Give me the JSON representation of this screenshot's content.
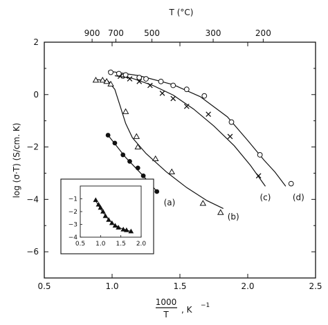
{
  "chart_data": {
    "type": "scatter",
    "title": "",
    "xlabel_numerator": "1000",
    "xlabel_denominator": "T",
    "xlabel_unit": ", K",
    "xlabel_unit_exp": "−1",
    "ylabel": "log (σ·T) (S/cm. K)",
    "top_axis_label": "T (°C)",
    "xlim": [
      0.5,
      2.5
    ],
    "ylim": [
      -7,
      2
    ],
    "xticks": [
      "0.5",
      "1.0",
      "1.5",
      "2.0",
      "2.5"
    ],
    "yticks": [
      "2",
      "0",
      "−2",
      "−4",
      "−6"
    ],
    "top_ticks": [
      "900",
      "700",
      "500",
      "300",
      "200"
    ],
    "top_tick_celsius": [
      900,
      700,
      500,
      300,
      200
    ],
    "series": [
      {
        "name": "(a)",
        "marker": "filled-circle",
        "points": [
          [
            0.97,
            -1.55
          ],
          [
            1.02,
            -1.85
          ],
          [
            1.08,
            -2.3
          ],
          [
            1.13,
            -2.55
          ],
          [
            1.19,
            -2.8
          ],
          [
            1.23,
            -3.1
          ],
          [
            1.33,
            -3.7
          ]
        ],
        "fit": [
          [
            0.97,
            -1.55
          ],
          [
            1.1,
            -2.4
          ],
          [
            1.22,
            -3.05
          ],
          [
            1.34,
            -3.75
          ]
        ]
      },
      {
        "name": "(b)",
        "marker": "open-triangle",
        "points": [
          [
            0.88,
            0.55
          ],
          [
            0.93,
            0.55
          ],
          [
            0.96,
            0.5
          ],
          [
            0.99,
            0.4
          ],
          [
            1.1,
            -0.65
          ],
          [
            1.18,
            -1.6
          ],
          [
            1.19,
            -2.0
          ],
          [
            1.32,
            -2.45
          ],
          [
            1.44,
            -2.95
          ],
          [
            1.67,
            -4.15
          ],
          [
            1.8,
            -4.5
          ]
        ],
        "fit": [
          [
            0.88,
            0.58
          ],
          [
            0.97,
            0.52
          ],
          [
            1.02,
            0.2
          ],
          [
            1.06,
            -0.45
          ],
          [
            1.1,
            -1.1
          ],
          [
            1.15,
            -1.65
          ],
          [
            1.25,
            -2.25
          ],
          [
            1.4,
            -2.95
          ],
          [
            1.55,
            -3.55
          ],
          [
            1.7,
            -4.05
          ],
          [
            1.82,
            -4.35
          ]
        ]
      },
      {
        "name": "(c)",
        "marker": "cross",
        "points": [
          [
            1.06,
            0.7
          ],
          [
            1.1,
            0.7
          ],
          [
            1.13,
            0.6
          ],
          [
            1.2,
            0.5
          ],
          [
            1.28,
            0.35
          ],
          [
            1.37,
            0.05
          ],
          [
            1.45,
            -0.15
          ],
          [
            1.55,
            -0.45
          ],
          [
            1.71,
            -0.75
          ],
          [
            1.87,
            -1.6
          ],
          [
            2.08,
            -3.1
          ]
        ],
        "fit": [
          [
            1.02,
            0.72
          ],
          [
            1.15,
            0.62
          ],
          [
            1.3,
            0.35
          ],
          [
            1.45,
            -0.02
          ],
          [
            1.6,
            -0.55
          ],
          [
            1.75,
            -1.2
          ],
          [
            1.9,
            -1.95
          ],
          [
            2.02,
            -2.7
          ],
          [
            2.13,
            -3.5
          ]
        ]
      },
      {
        "name": "(d)",
        "marker": "open-circle",
        "points": [
          [
            0.99,
            0.85
          ],
          [
            1.05,
            0.8
          ],
          [
            1.1,
            0.75
          ],
          [
            1.2,
            0.65
          ],
          [
            1.25,
            0.6
          ],
          [
            1.36,
            0.5
          ],
          [
            1.45,
            0.35
          ],
          [
            1.55,
            0.2
          ],
          [
            1.68,
            -0.05
          ],
          [
            1.88,
            -1.05
          ],
          [
            2.09,
            -2.3
          ],
          [
            2.32,
            -3.4
          ]
        ],
        "fit": [
          [
            0.97,
            0.9
          ],
          [
            1.2,
            0.72
          ],
          [
            1.45,
            0.38
          ],
          [
            1.65,
            -0.08
          ],
          [
            1.85,
            -0.85
          ],
          [
            2.0,
            -1.75
          ],
          [
            2.12,
            -2.5
          ],
          [
            2.2,
            -2.95
          ],
          [
            2.28,
            -3.5
          ]
        ]
      }
    ],
    "inset": {
      "xlim": [
        0.5,
        2.0
      ],
      "ylim": [
        -4,
        0
      ],
      "xticks": [
        "0.5",
        "1.0",
        "1.5",
        "2.0"
      ],
      "yticks": [
        "−1",
        "−2",
        "−3",
        "−4"
      ],
      "marker": "filled-triangle",
      "points": [
        [
          0.88,
          -1.1
        ],
        [
          0.95,
          -1.45
        ],
        [
          1.0,
          -1.7
        ],
        [
          1.06,
          -2.0
        ],
        [
          1.12,
          -2.35
        ],
        [
          1.2,
          -2.65
        ],
        [
          1.28,
          -2.9
        ],
        [
          1.36,
          -3.1
        ],
        [
          1.44,
          -3.25
        ],
        [
          1.56,
          -3.4
        ],
        [
          1.64,
          -3.45
        ],
        [
          1.75,
          -3.55
        ]
      ],
      "fit": [
        [
          0.86,
          -1.05
        ],
        [
          1.0,
          -1.8
        ],
        [
          1.15,
          -2.45
        ],
        [
          1.3,
          -2.95
        ],
        [
          1.5,
          -3.3
        ],
        [
          1.75,
          -3.55
        ]
      ]
    }
  }
}
